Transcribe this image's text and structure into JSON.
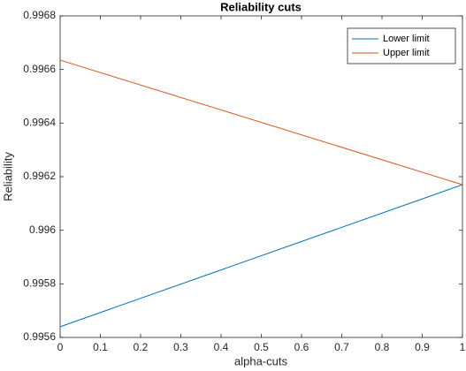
{
  "chart_data": {
    "type": "line",
    "title": "Reliability cuts",
    "xlabel": "alpha-cuts",
    "ylabel": "Reliability",
    "x": [
      0,
      1
    ],
    "series": [
      {
        "name": "Lower limit",
        "color": "#0072bd",
        "values": [
          0.99564,
          0.99617
        ]
      },
      {
        "name": "Upper limit",
        "color": "#d95319",
        "values": [
          0.996635,
          0.99617
        ]
      }
    ],
    "xlim": [
      0,
      1
    ],
    "xticks": [
      0,
      0.1,
      0.2,
      0.3,
      0.4,
      0.5,
      0.6,
      0.7,
      0.8,
      0.9,
      1
    ],
    "ylim": [
      0.9956,
      0.9968
    ],
    "yticks": [
      0.9956,
      0.9958,
      0.996,
      0.9962,
      0.9964,
      0.9966,
      0.9968
    ],
    "grid": false,
    "legend": "northeast"
  }
}
